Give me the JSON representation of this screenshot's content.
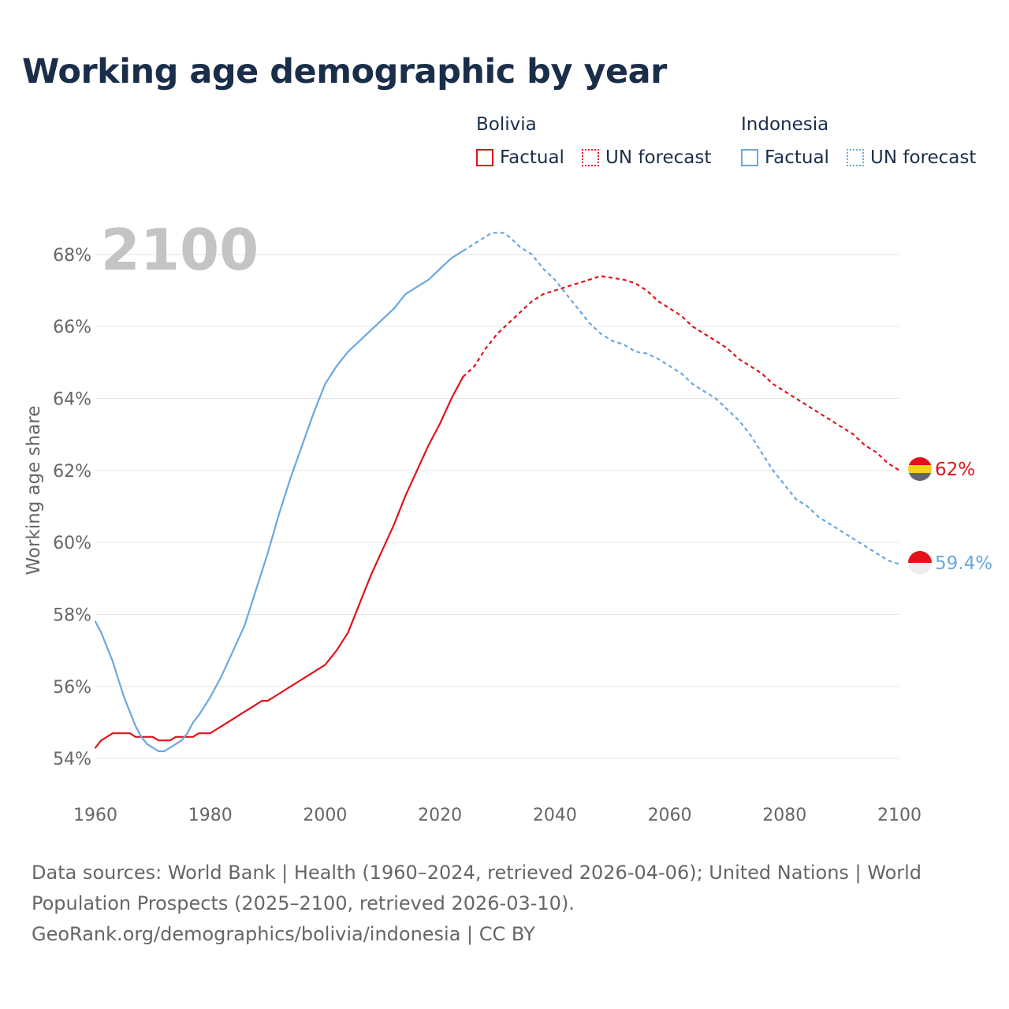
{
  "title": "Working age demographic by year",
  "year_watermark": "2100",
  "legend": {
    "groups": [
      {
        "country": "Bolivia",
        "color": "#e3121a",
        "factual": "Factual",
        "forecast": "UN forecast"
      },
      {
        "country": "Indonesia",
        "color": "#6aa8e0",
        "factual": "Factual",
        "forecast": "UN forecast"
      }
    ]
  },
  "footer": {
    "sources": "Data sources: World Bank | Health (1960–2024, retrieved 2026-04-06); United Nations | World Population Prospects (2025–2100, retrieved 2026-03-10).",
    "credit": "GeoRank.org/demographics/bolivia/indonesia | CC BY"
  },
  "chart_data": {
    "type": "line",
    "title": "Working age demographic by year",
    "xlabel": "",
    "ylabel": "Working age share",
    "xlim": [
      1960,
      2100
    ],
    "ylim": [
      53.5,
      68.5
    ],
    "x_ticks": [
      1960,
      1980,
      2000,
      2020,
      2040,
      2060,
      2080,
      2100
    ],
    "x_tick_labels": [
      "1960",
      "1980",
      "2000",
      "2020",
      "2040",
      "2060",
      "2080",
      "2100"
    ],
    "y_ticks": [
      54,
      56,
      58,
      60,
      62,
      64,
      66,
      68
    ],
    "y_tick_labels": [
      "54%",
      "56%",
      "58%",
      "60%",
      "62%",
      "64%",
      "66%",
      "68%"
    ],
    "grid": true,
    "factual_end_year": 2024,
    "series": [
      {
        "name": "Bolivia",
        "color": "#e3121a",
        "end_label": "62%",
        "points": [
          [
            1960,
            54.3
          ],
          [
            1961,
            54.5
          ],
          [
            1962,
            54.6
          ],
          [
            1963,
            54.7
          ],
          [
            1966,
            54.7
          ],
          [
            1967,
            54.6
          ],
          [
            1970,
            54.6
          ],
          [
            1971,
            54.5
          ],
          [
            1973,
            54.5
          ],
          [
            1974,
            54.6
          ],
          [
            1977,
            54.6
          ],
          [
            1978,
            54.7
          ],
          [
            1980,
            54.7
          ],
          [
            1982,
            54.9
          ],
          [
            1984,
            55.1
          ],
          [
            1986,
            55.3
          ],
          [
            1988,
            55.5
          ],
          [
            1989,
            55.6
          ],
          [
            1990,
            55.6
          ],
          [
            1992,
            55.8
          ],
          [
            1994,
            56.0
          ],
          [
            1996,
            56.2
          ],
          [
            1998,
            56.4
          ],
          [
            2000,
            56.6
          ],
          [
            2002,
            57.0
          ],
          [
            2004,
            57.5
          ],
          [
            2006,
            58.3
          ],
          [
            2008,
            59.1
          ],
          [
            2010,
            59.8
          ],
          [
            2012,
            60.5
          ],
          [
            2014,
            61.3
          ],
          [
            2016,
            62.0
          ],
          [
            2018,
            62.7
          ],
          [
            2020,
            63.3
          ],
          [
            2022,
            64.0
          ],
          [
            2024,
            64.6
          ],
          [
            2026,
            64.9
          ],
          [
            2028,
            65.4
          ],
          [
            2030,
            65.8
          ],
          [
            2032,
            66.1
          ],
          [
            2034,
            66.4
          ],
          [
            2036,
            66.7
          ],
          [
            2038,
            66.9
          ],
          [
            2040,
            67.0
          ],
          [
            2042,
            67.1
          ],
          [
            2044,
            67.2
          ],
          [
            2046,
            67.3
          ],
          [
            2048,
            67.4
          ],
          [
            2050,
            67.35
          ],
          [
            2052,
            67.3
          ],
          [
            2054,
            67.2
          ],
          [
            2056,
            67.0
          ],
          [
            2058,
            66.7
          ],
          [
            2060,
            66.5
          ],
          [
            2062,
            66.3
          ],
          [
            2064,
            66.0
          ],
          [
            2066,
            65.8
          ],
          [
            2068,
            65.6
          ],
          [
            2070,
            65.4
          ],
          [
            2072,
            65.1
          ],
          [
            2074,
            64.9
          ],
          [
            2076,
            64.7
          ],
          [
            2078,
            64.4
          ],
          [
            2080,
            64.2
          ],
          [
            2082,
            64.0
          ],
          [
            2084,
            63.8
          ],
          [
            2086,
            63.6
          ],
          [
            2088,
            63.4
          ],
          [
            2090,
            63.2
          ],
          [
            2092,
            63.0
          ],
          [
            2094,
            62.7
          ],
          [
            2096,
            62.5
          ],
          [
            2098,
            62.2
          ],
          [
            2100,
            62.0
          ]
        ]
      },
      {
        "name": "Indonesia",
        "color": "#6aa8e0",
        "end_label": "59.4%",
        "points": [
          [
            1960,
            57.8
          ],
          [
            1961,
            57.5
          ],
          [
            1962,
            57.1
          ],
          [
            1963,
            56.7
          ],
          [
            1964,
            56.2
          ],
          [
            1965,
            55.7
          ],
          [
            1966,
            55.3
          ],
          [
            1967,
            54.9
          ],
          [
            1968,
            54.6
          ],
          [
            1969,
            54.4
          ],
          [
            1970,
            54.3
          ],
          [
            1971,
            54.2
          ],
          [
            1972,
            54.2
          ],
          [
            1973,
            54.3
          ],
          [
            1974,
            54.4
          ],
          [
            1975,
            54.5
          ],
          [
            1976,
            54.7
          ],
          [
            1977,
            55.0
          ],
          [
            1978,
            55.2
          ],
          [
            1980,
            55.7
          ],
          [
            1982,
            56.3
          ],
          [
            1984,
            57.0
          ],
          [
            1986,
            57.7
          ],
          [
            1988,
            58.7
          ],
          [
            1990,
            59.7
          ],
          [
            1992,
            60.8
          ],
          [
            1994,
            61.8
          ],
          [
            1996,
            62.7
          ],
          [
            1998,
            63.6
          ],
          [
            2000,
            64.4
          ],
          [
            2002,
            64.9
          ],
          [
            2004,
            65.3
          ],
          [
            2006,
            65.6
          ],
          [
            2008,
            65.9
          ],
          [
            2010,
            66.2
          ],
          [
            2012,
            66.5
          ],
          [
            2014,
            66.9
          ],
          [
            2016,
            67.1
          ],
          [
            2018,
            67.3
          ],
          [
            2020,
            67.6
          ],
          [
            2022,
            67.9
          ],
          [
            2024,
            68.1
          ],
          [
            2026,
            68.3
          ],
          [
            2028,
            68.5
          ],
          [
            2029,
            68.6
          ],
          [
            2031,
            68.6
          ],
          [
            2032,
            68.5
          ],
          [
            2034,
            68.2
          ],
          [
            2036,
            68.0
          ],
          [
            2038,
            67.6
          ],
          [
            2040,
            67.3
          ],
          [
            2042,
            66.9
          ],
          [
            2044,
            66.5
          ],
          [
            2046,
            66.1
          ],
          [
            2048,
            65.8
          ],
          [
            2050,
            65.6
          ],
          [
            2052,
            65.5
          ],
          [
            2054,
            65.3
          ],
          [
            2056,
            65.25
          ],
          [
            2058,
            65.1
          ],
          [
            2060,
            64.9
          ],
          [
            2062,
            64.7
          ],
          [
            2064,
            64.4
          ],
          [
            2066,
            64.2
          ],
          [
            2068,
            64.0
          ],
          [
            2070,
            63.7
          ],
          [
            2072,
            63.4
          ],
          [
            2074,
            63.0
          ],
          [
            2076,
            62.5
          ],
          [
            2078,
            62.0
          ],
          [
            2080,
            61.6
          ],
          [
            2082,
            61.2
          ],
          [
            2084,
            61.0
          ],
          [
            2086,
            60.7
          ],
          [
            2088,
            60.5
          ],
          [
            2090,
            60.3
          ],
          [
            2092,
            60.1
          ],
          [
            2094,
            59.9
          ],
          [
            2096,
            59.7
          ],
          [
            2098,
            59.5
          ],
          [
            2100,
            59.4
          ]
        ]
      }
    ]
  }
}
